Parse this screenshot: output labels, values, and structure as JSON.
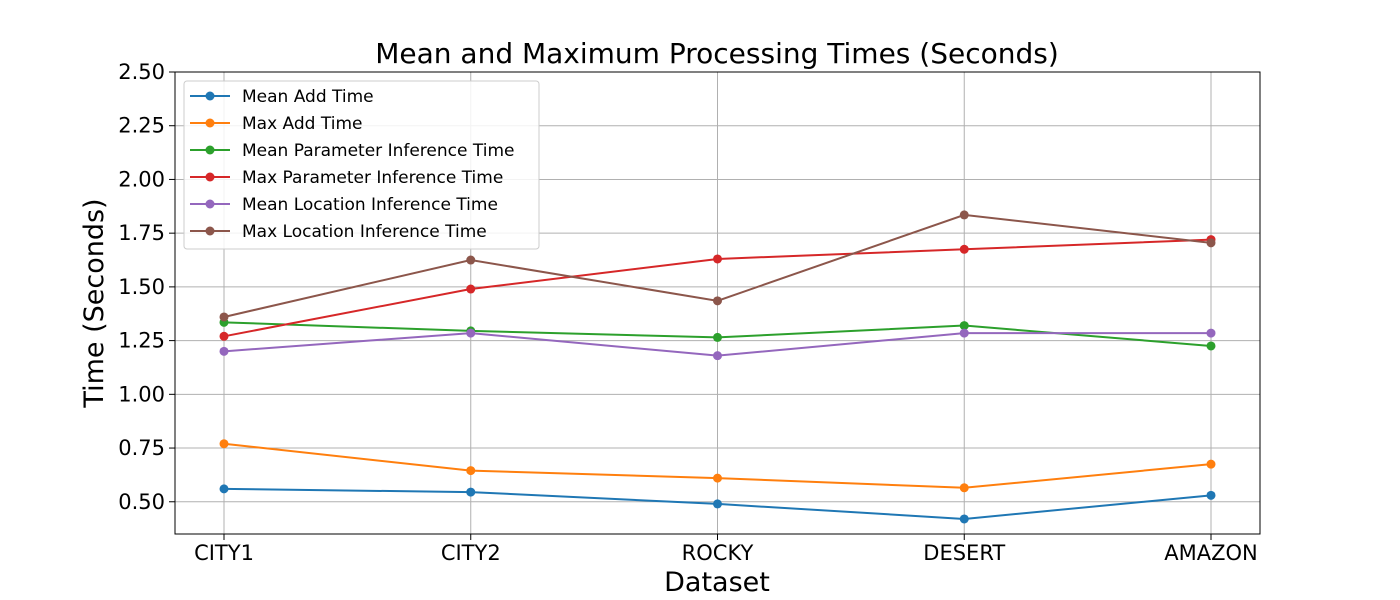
{
  "chart_data": {
    "type": "line",
    "title": "Mean and Maximum Processing Times (Seconds)",
    "xlabel": "Dataset",
    "ylabel": "Time (Seconds)",
    "categories": [
      "CITY1",
      "CITY2",
      "ROCKY",
      "DESERT",
      "AMAZON"
    ],
    "ylim": [
      0.35,
      2.5
    ],
    "yticks": [
      0.5,
      0.75,
      1.0,
      1.25,
      1.5,
      1.75,
      2.0,
      2.25,
      2.5
    ],
    "ytick_labels": [
      "0.50",
      "0.75",
      "1.00",
      "1.25",
      "1.50",
      "1.75",
      "2.00",
      "2.25",
      "2.50"
    ],
    "grid": true,
    "legend_position": "top-left",
    "series": [
      {
        "name": "Mean Add Time",
        "color": "#1f77b4",
        "values": [
          0.56,
          0.545,
          0.49,
          0.42,
          0.53
        ]
      },
      {
        "name": "Max Add Time",
        "color": "#ff7f0e",
        "values": [
          0.77,
          0.645,
          0.61,
          0.565,
          0.675
        ]
      },
      {
        "name": "Mean Parameter Inference Time",
        "color": "#2ca02c",
        "values": [
          1.335,
          1.295,
          1.265,
          1.32,
          1.225
        ]
      },
      {
        "name": "Max Parameter Inference Time",
        "color": "#d62728",
        "values": [
          1.27,
          1.49,
          1.63,
          1.675,
          1.72
        ]
      },
      {
        "name": "Mean Location Inference Time",
        "color": "#9467bd",
        "values": [
          1.2,
          1.285,
          1.18,
          1.285,
          1.285
        ]
      },
      {
        "name": "Max Location Inference Time",
        "color": "#8c564b",
        "values": [
          1.36,
          1.625,
          1.435,
          1.835,
          1.705
        ]
      }
    ]
  }
}
